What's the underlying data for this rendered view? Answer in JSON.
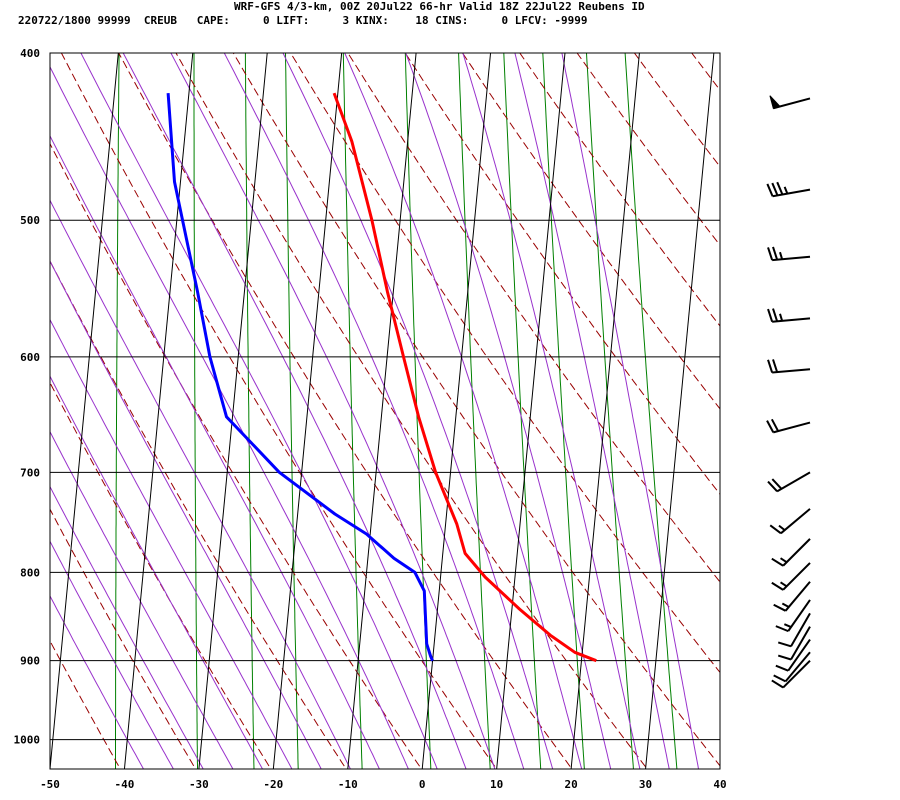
{
  "header": {
    "title": "WRF-GFS 4/3-km, 00Z 20Jul22 66-hr Valid 18Z 22Jul22 Reubens ID",
    "stats": "220722/1800 99999  CREUB   CAPE:     0 LIFT:     3 KINX:    18 CINS:     0 LFCV: -9999"
  },
  "colors": {
    "temperature": "#ff0000",
    "dewpoint": "#0000ff",
    "isotherm": "#000000",
    "dry_adiabat": "#990000",
    "moist_adiabat": "#9933cc",
    "mixing_ratio": "#008000",
    "wind_barb": "#000000"
  },
  "chart_data": {
    "type": "skew-t log-p sounding",
    "x_axis": {
      "label": "",
      "range": [
        -50,
        40
      ],
      "ticks": [
        -50,
        -40,
        -30,
        -20,
        -10,
        0,
        10,
        20,
        30,
        40
      ]
    },
    "y_axis": {
      "label": "",
      "range": [
        1040,
        400
      ],
      "scale": "log",
      "ticks": [
        400,
        500,
        600,
        700,
        800,
        900,
        1000
      ]
    },
    "grid": true,
    "series": [
      {
        "color": "temperature",
        "points": [
          [
            422,
            -20.5
          ],
          [
            450,
            -17.5
          ],
          [
            500,
            -13.8
          ],
          [
            550,
            -10.8
          ],
          [
            600,
            -7.8
          ],
          [
            650,
            -5
          ],
          [
            700,
            -2
          ],
          [
            750,
            1.5
          ],
          [
            780,
            3
          ],
          [
            805,
            6
          ],
          [
            840,
            11
          ],
          [
            870,
            15.5
          ],
          [
            890,
            19
          ],
          [
            900,
            22
          ]
        ]
      },
      {
        "color": "dewpoint",
        "points": [
          [
            422,
            -42.8
          ],
          [
            475,
            -40.8
          ],
          [
            550,
            -36.3
          ],
          [
            600,
            -33.8
          ],
          [
            650,
            -30.8
          ],
          [
            700,
            -23
          ],
          [
            740,
            -15
          ],
          [
            760,
            -10.5
          ],
          [
            785,
            -6.5
          ],
          [
            800,
            -3.5
          ],
          [
            820,
            -2
          ],
          [
            880,
            -1
          ],
          [
            895,
            -0.3
          ],
          [
            900,
            0
          ]
        ]
      }
    ],
    "wind_barbs": [
      {
        "pressure": 425,
        "direction_deg": 255,
        "speed_kt": 50
      },
      {
        "pressure": 480,
        "direction_deg": 260,
        "speed_kt": 35
      },
      {
        "pressure": 525,
        "direction_deg": 265,
        "speed_kt": 25
      },
      {
        "pressure": 570,
        "direction_deg": 265,
        "speed_kt": 25
      },
      {
        "pressure": 610,
        "direction_deg": 265,
        "speed_kt": 20
      },
      {
        "pressure": 655,
        "direction_deg": 255,
        "speed_kt": 20
      },
      {
        "pressure": 700,
        "direction_deg": 240,
        "speed_kt": 20
      },
      {
        "pressure": 735,
        "direction_deg": 230,
        "speed_kt": 15
      },
      {
        "pressure": 765,
        "direction_deg": 225,
        "speed_kt": 15
      },
      {
        "pressure": 790,
        "direction_deg": 225,
        "speed_kt": 15
      },
      {
        "pressure": 810,
        "direction_deg": 220,
        "speed_kt": 15
      },
      {
        "pressure": 830,
        "direction_deg": 215,
        "speed_kt": 15
      },
      {
        "pressure": 845,
        "direction_deg": 210,
        "speed_kt": 10
      },
      {
        "pressure": 860,
        "direction_deg": 210,
        "speed_kt": 10
      },
      {
        "pressure": 875,
        "direction_deg": 215,
        "speed_kt": 10
      },
      {
        "pressure": 890,
        "direction_deg": 220,
        "speed_kt": 10
      },
      {
        "pressure": 900,
        "direction_deg": 225,
        "speed_kt": 10
      }
    ]
  }
}
